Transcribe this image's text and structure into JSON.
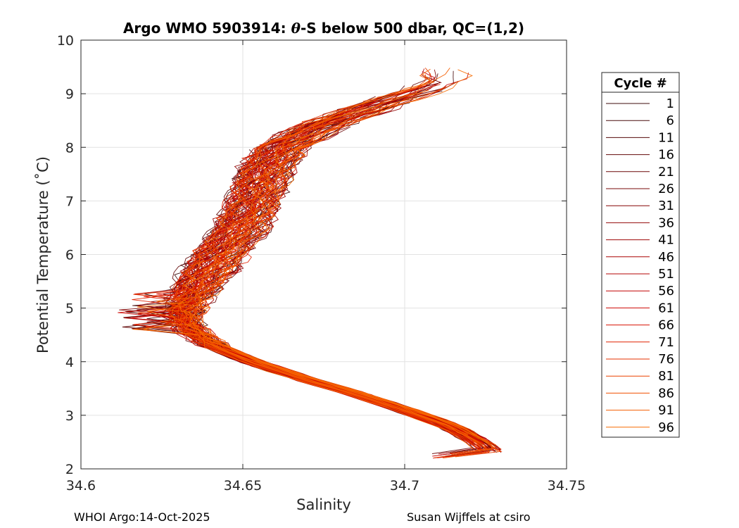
{
  "chart_data": {
    "type": "line",
    "title_prefix": "Argo WMO 5903914: ",
    "title_theta": "θ",
    "title_suffix": "-S below 500 dbar,  QC=(1,2)",
    "xlabel": "Salinity",
    "ylabel": "Potential Temperature (˚C)",
    "xlim": [
      34.6,
      34.75
    ],
    "ylim": [
      2,
      10
    ],
    "xticks": [
      34.6,
      34.65,
      34.7,
      34.75
    ],
    "xtick_labels": [
      "34.6",
      "34.65",
      "34.7",
      "34.75"
    ],
    "yticks": [
      2,
      3,
      4,
      5,
      6,
      7,
      8,
      9,
      10
    ],
    "ytick_labels": [
      "2",
      "3",
      "4",
      "5",
      "6",
      "7",
      "8",
      "9",
      "10"
    ],
    "grid": true,
    "legend_title": "Cycle #",
    "legend_position": "outside-right",
    "legend_entries": [
      {
        "label": "1",
        "color": "#3d0d0d"
      },
      {
        "label": "6",
        "color": "#4a0d0d"
      },
      {
        "label": "11",
        "color": "#560a0a"
      },
      {
        "label": "16",
        "color": "#620a0a"
      },
      {
        "label": "21",
        "color": "#6e0909"
      },
      {
        "label": "26",
        "color": "#7a0808"
      },
      {
        "label": "31",
        "color": "#860707"
      },
      {
        "label": "36",
        "color": "#920606"
      },
      {
        "label": "41",
        "color": "#9e0505"
      },
      {
        "label": "46",
        "color": "#aa0404"
      },
      {
        "label": "51",
        "color": "#b60404"
      },
      {
        "label": "56",
        "color": "#c20303"
      },
      {
        "label": "61",
        "color": "#ce0602"
      },
      {
        "label": "66",
        "color": "#d81202"
      },
      {
        "label": "71",
        "color": "#e02201"
      },
      {
        "label": "76",
        "color": "#e63201"
      },
      {
        "label": "81",
        "color": "#eb4201"
      },
      {
        "label": "86",
        "color": "#f05000"
      },
      {
        "label": "91",
        "color": "#f45e00"
      },
      {
        "label": "96",
        "color": "#f76b00"
      }
    ],
    "base_profile": {
      "theta": [
        2.3,
        2.5,
        2.8,
        3.1,
        3.4,
        3.7,
        4.0,
        4.3,
        4.6,
        4.9,
        5.2,
        5.6,
        6.0,
        6.4,
        6.8,
        7.2,
        7.6,
        8.0,
        8.4,
        8.8,
        9.2
      ],
      "salinity": [
        34.727,
        34.723,
        34.714,
        34.7,
        34.685,
        34.668,
        34.653,
        34.641,
        34.634,
        34.632,
        34.634,
        34.638,
        34.643,
        34.648,
        34.652,
        34.655,
        34.657,
        34.662,
        34.674,
        34.692,
        34.712
      ]
    },
    "profile_count": 100
  },
  "footer": {
    "left": "WHOI Argo:14-Oct-2025",
    "right": "Susan Wijffels at csiro"
  }
}
